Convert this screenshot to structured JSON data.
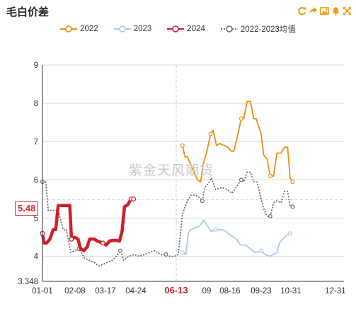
{
  "title": "毛白价差",
  "watermark": "紫金天风期货",
  "toolbar": [
    {
      "name": "refresh-icon",
      "color": "#f29b12"
    },
    {
      "name": "share-icon",
      "color": "#f29b12"
    },
    {
      "name": "image-icon",
      "color": "#f29b12"
    },
    {
      "name": "bell-icon",
      "color": "#f29b12"
    },
    {
      "name": "fullscreen-icon",
      "color": "#f29b12"
    }
  ],
  "cursor_value": "5.48",
  "chart_data": {
    "type": "line",
    "title": "毛白价差",
    "xlabel": "",
    "ylabel": "",
    "ylim": [
      3.348,
      9
    ],
    "y_ticks": [
      "9",
      "8",
      "7",
      "6",
      "5",
      "4",
      "3.348"
    ],
    "x_ticks": [
      "01-01",
      "02-08",
      "03-17",
      "04-24",
      "06-13",
      "09",
      "08-16",
      "09-23",
      "10-31",
      "12-31"
    ],
    "highlight_x": "06-13",
    "x_domain": [
      1,
      365
    ],
    "legend": {
      "position": "top"
    },
    "series": [
      {
        "name": "2022",
        "color": "#f28b12",
        "style": "solid",
        "points": [
          [
            170,
            6.9
          ],
          [
            173,
            6.6
          ],
          [
            176,
            6.6
          ],
          [
            180,
            6.4
          ],
          [
            184,
            6.2
          ],
          [
            188,
            6.0
          ],
          [
            192,
            5.95
          ],
          [
            195,
            6.4
          ],
          [
            199,
            6.7
          ],
          [
            204,
            7.2
          ],
          [
            207,
            7.3
          ],
          [
            211,
            6.9
          ],
          [
            215,
            6.95
          ],
          [
            220,
            6.9
          ],
          [
            225,
            6.85
          ],
          [
            229,
            6.75
          ],
          [
            232,
            6.75
          ],
          [
            237,
            7.2
          ],
          [
            241,
            7.6
          ],
          [
            244,
            7.6
          ],
          [
            248,
            8.05
          ],
          [
            252,
            8.05
          ],
          [
            256,
            7.6
          ],
          [
            259,
            7.6
          ],
          [
            265,
            7.2
          ],
          [
            268,
            6.65
          ],
          [
            272,
            6.55
          ],
          [
            276,
            6.1
          ],
          [
            280,
            6.1
          ],
          [
            284,
            6.7
          ],
          [
            289,
            6.7
          ],
          [
            293,
            6.85
          ],
          [
            297,
            6.85
          ],
          [
            300,
            6.05
          ],
          [
            303,
            5.95
          ]
        ]
      },
      {
        "name": "2023",
        "color": "#adc9e8",
        "style": "solid",
        "points": [
          [
            170,
            4.1
          ],
          [
            174,
            4.05
          ],
          [
            177,
            4.6
          ],
          [
            180,
            4.7
          ],
          [
            186,
            4.75
          ],
          [
            191,
            4.8
          ],
          [
            196,
            4.95
          ],
          [
            200,
            4.8
          ],
          [
            205,
            4.65
          ],
          [
            210,
            4.7
          ],
          [
            218,
            4.7
          ],
          [
            223,
            4.65
          ],
          [
            228,
            4.55
          ],
          [
            235,
            4.45
          ],
          [
            240,
            4.3
          ],
          [
            246,
            4.3
          ],
          [
            252,
            4.2
          ],
          [
            258,
            4.1
          ],
          [
            265,
            4.15
          ],
          [
            270,
            4.05
          ],
          [
            275,
            4.0
          ],
          [
            280,
            4.05
          ],
          [
            284,
            4.1
          ],
          [
            287,
            4.35
          ],
          [
            291,
            4.45
          ],
          [
            296,
            4.55
          ],
          [
            300,
            4.6
          ]
        ]
      },
      {
        "name": "2024",
        "color": "#d01f2a",
        "style": "solid",
        "points": [
          [
            1,
            4.6
          ],
          [
            3,
            4.35
          ],
          [
            6,
            4.35
          ],
          [
            10,
            4.45
          ],
          [
            14,
            4.7
          ],
          [
            17,
            4.7
          ],
          [
            20,
            5.33
          ],
          [
            27,
            5.33
          ],
          [
            34,
            5.33
          ],
          [
            36,
            4.45
          ],
          [
            40,
            4.5
          ],
          [
            44,
            4.45
          ],
          [
            47,
            4.2
          ],
          [
            51,
            4.15
          ],
          [
            55,
            4.25
          ],
          [
            58,
            4.45
          ],
          [
            64,
            4.45
          ],
          [
            67,
            4.4
          ],
          [
            74,
            4.35
          ],
          [
            78,
            4.3
          ],
          [
            82,
            4.4
          ],
          [
            86,
            4.42
          ],
          [
            90,
            4.42
          ],
          [
            94,
            4.4
          ],
          [
            97,
            4.65
          ],
          [
            100,
            5.3
          ],
          [
            104,
            5.35
          ],
          [
            108,
            5.5
          ],
          [
            111,
            5.5
          ]
        ]
      },
      {
        "name": "2022-2023均值",
        "color": "#6a6a6a",
        "style": "dotted",
        "points": [
          [
            1,
            5.95
          ],
          [
            5,
            5.95
          ],
          [
            8,
            5.2
          ],
          [
            14,
            5.2
          ],
          [
            20,
            5.2
          ],
          [
            26,
            4.7
          ],
          [
            30,
            4.7
          ],
          [
            35,
            4.1
          ],
          [
            40,
            4.15
          ],
          [
            45,
            4.2
          ],
          [
            52,
            3.95
          ],
          [
            57,
            3.9
          ],
          [
            63,
            3.85
          ],
          [
            69,
            3.75
          ],
          [
            75,
            3.8
          ],
          [
            80,
            3.85
          ],
          [
            86,
            3.9
          ],
          [
            90,
            4.0
          ],
          [
            95,
            4.15
          ],
          [
            99,
            3.9
          ],
          [
            105,
            4.0
          ],
          [
            112,
            4.05
          ],
          [
            118,
            4.0
          ],
          [
            124,
            4.05
          ],
          [
            130,
            4.1
          ],
          [
            137,
            4.15
          ],
          [
            143,
            4.05
          ],
          [
            150,
            4.05
          ],
          [
            155,
            4.0
          ],
          [
            160,
            4.0
          ],
          [
            165,
            4.05
          ],
          [
            170,
            5.1
          ],
          [
            175,
            5.4
          ],
          [
            180,
            5.6
          ],
          [
            185,
            5.6
          ],
          [
            190,
            5.55
          ],
          [
            194,
            5.45
          ],
          [
            197,
            5.8
          ],
          [
            201,
            5.9
          ],
          [
            205,
            6.05
          ],
          [
            210,
            5.75
          ],
          [
            218,
            5.8
          ],
          [
            224,
            5.75
          ],
          [
            230,
            5.65
          ],
          [
            236,
            5.85
          ],
          [
            241,
            6.0
          ],
          [
            244,
            5.95
          ],
          [
            248,
            6.2
          ],
          [
            252,
            6.2
          ],
          [
            256,
            5.95
          ],
          [
            260,
            5.95
          ],
          [
            265,
            5.5
          ],
          [
            268,
            5.25
          ],
          [
            272,
            5.05
          ],
          [
            276,
            5.05
          ],
          [
            280,
            5.4
          ],
          [
            284,
            5.45
          ],
          [
            289,
            5.4
          ],
          [
            293,
            5.7
          ],
          [
            297,
            5.7
          ],
          [
            300,
            5.3
          ],
          [
            303,
            5.3
          ]
        ]
      }
    ]
  }
}
